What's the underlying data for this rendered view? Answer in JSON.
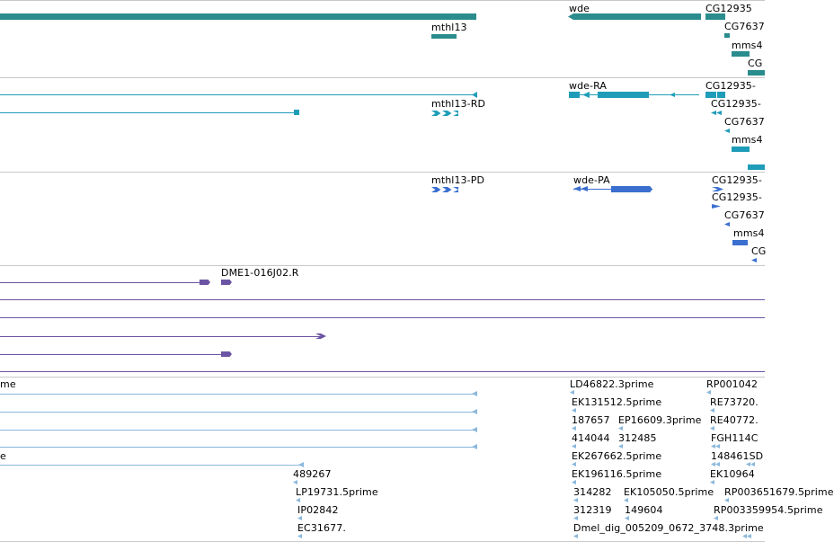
{
  "colors": {
    "gene": "#2a8c8c",
    "transcript": "#1f9db8",
    "protein": "#3a6fd0",
    "clone": "#6b54a3",
    "est": "#8bb8dc",
    "separator": "#c8c8c8"
  },
  "tracks": [
    {
      "id": "gene-track",
      "labels": [
        "wde",
        "CG12935",
        "mthl13",
        "CG7637",
        "mms4",
        "CG"
      ]
    },
    {
      "id": "transcript-track",
      "labels": [
        "wde-RA",
        "CG12935-",
        "mthl13-RD",
        "CG12935-",
        "CG7637",
        "mms4"
      ]
    },
    {
      "id": "protein-track",
      "labels": [
        "mthl13-PD",
        "wde-PA",
        "CG12935-",
        "CG12935-",
        "CG7637",
        "mms4",
        "CG"
      ]
    },
    {
      "id": "clone-track",
      "labels": [
        "DME1-016J02.R"
      ]
    },
    {
      "id": "est-track",
      "labels": [
        "me",
        "LD46822.3prime",
        "RP001042",
        "EK131512.5prime",
        "RE73720.",
        "187657",
        "EP16609.3prime",
        "RE40772.",
        "414044",
        "312485",
        "FGH114C",
        "e",
        "EK267662.5prime",
        "148461SD",
        "489267",
        "EK196116.5prime",
        "EK10964",
        "LP19731.5prime",
        "314282",
        "EK105050.5prime",
        "IP02842",
        "RP003651679.5prime",
        "312319",
        "149604",
        "EC31677.",
        "RP003359954.5prime",
        "Dmel_dig_005209_0672_3748.3prime"
      ]
    }
  ]
}
